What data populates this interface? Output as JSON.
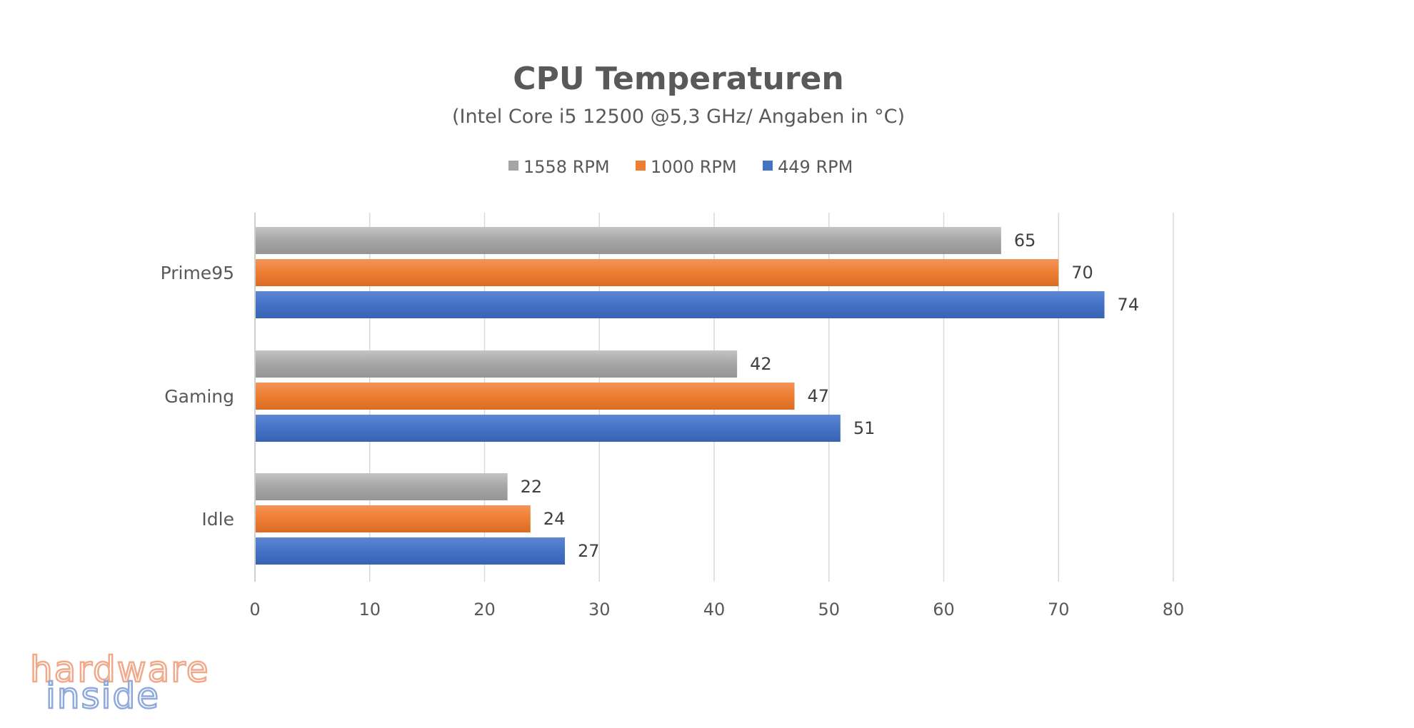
{
  "chart_data": {
    "type": "bar",
    "orientation": "horizontal",
    "title": "CPU Temperaturen",
    "subtitle": "(Intel Core i5 12500 @5,3 GHz/ Angaben in °C)",
    "categories": [
      "Prime95",
      "Gaming",
      "Idle"
    ],
    "series": [
      {
        "name": "1558 RPM",
        "color": "#a5a5a5",
        "values": [
          65,
          42,
          22
        ]
      },
      {
        "name": "1000 RPM",
        "color": "#ed7d31",
        "values": [
          70,
          47,
          24
        ]
      },
      {
        "name": "449 RPM",
        "color": "#4472c4",
        "values": [
          74,
          51,
          27
        ]
      }
    ],
    "xlim": [
      0,
      80
    ],
    "xticks": [
      "0",
      "10",
      "20",
      "30",
      "40",
      "50",
      "60",
      "70",
      "80"
    ],
    "grid": true,
    "legend": "top-center",
    "xlabel": "",
    "ylabel": ""
  },
  "watermark": {
    "line1": "hardware",
    "line2": "inside"
  }
}
